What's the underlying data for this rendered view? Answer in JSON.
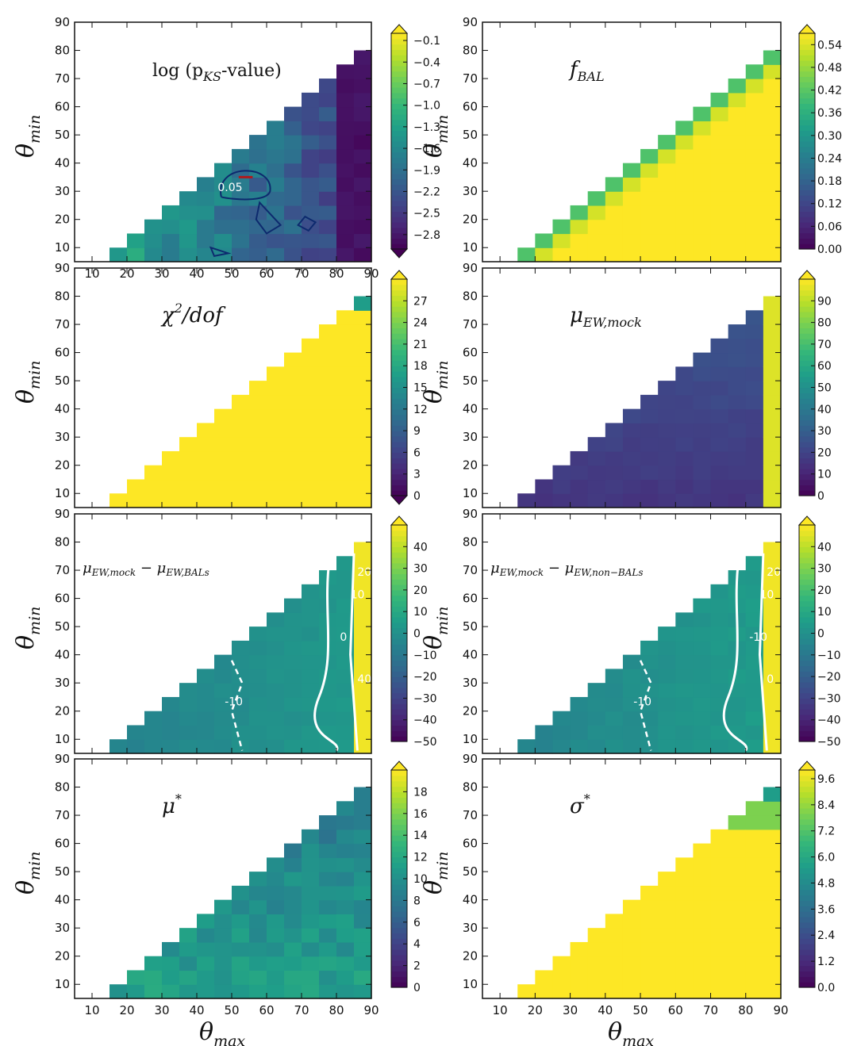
{
  "colors": {
    "viridis": [
      "#440154",
      "#482878",
      "#3e4989",
      "#31688e",
      "#26828e",
      "#1f9e89",
      "#35b779",
      "#6ece58",
      "#b5de2b",
      "#fde725"
    ],
    "axis": "#111111",
    "contour_dark": "#0d2a6e",
    "contour_red": "#b0191c",
    "contour_white": "#ffffff"
  },
  "chart_data": [
    {
      "id": "log_pks",
      "type": "heatmap",
      "title": "log (p_KS-value)",
      "title_main": "log",
      "title_p": "(p",
      "title_sub": "KS",
      "title_rest": "-value)",
      "xlabel": "",
      "ylabel": "θ_min",
      "ylabel_main": "θ",
      "ylabel_sub": "min",
      "xlim": [
        5,
        90
      ],
      "ylim": [
        5,
        90
      ],
      "xticks": [
        "10",
        "20",
        "30",
        "40",
        "50",
        "60",
        "70",
        "80",
        "90"
      ],
      "yticks": [
        "10",
        "20",
        "30",
        "40",
        "50",
        "60",
        "70",
        "80",
        "90"
      ],
      "colorbar": {
        "vmin": -3.0,
        "vmax": 0.0,
        "extend": "both",
        "ticks": [
          "-0.1",
          "-0.4",
          "-0.7",
          "-1.0",
          "-1.3",
          "-1.6",
          "-1.9",
          "-2.2",
          "-2.5",
          "-2.8"
        ],
        "tick_values": [
          -0.1,
          -0.4,
          -0.7,
          -1.0,
          -1.3,
          -1.6,
          -1.9,
          -2.2,
          -2.5,
          -2.8
        ]
      },
      "contour_labels": [
        "0.05"
      ],
      "grid": false
    },
    {
      "id": "f_bal",
      "type": "heatmap",
      "title": "f_BAL",
      "title_main": "f",
      "title_sub": "BAL",
      "xlabel": "",
      "ylabel": "θ_min",
      "ylabel_main": "θ",
      "ylabel_sub": "min",
      "xlim": [
        5,
        90
      ],
      "ylim": [
        5,
        90
      ],
      "xticks": [],
      "yticks": [
        "10",
        "20",
        "30",
        "40",
        "50",
        "60",
        "70",
        "80",
        "90"
      ],
      "colorbar": {
        "vmin": 0.0,
        "vmax": 0.57,
        "extend": "max",
        "ticks": [
          "0.54",
          "0.48",
          "0.42",
          "0.36",
          "0.30",
          "0.24",
          "0.18",
          "0.12",
          "0.06",
          "0.00"
        ],
        "tick_values": [
          0.54,
          0.48,
          0.42,
          0.36,
          0.3,
          0.24,
          0.18,
          0.12,
          0.06,
          0.0
        ]
      },
      "grid": false
    },
    {
      "id": "chi2",
      "type": "heatmap",
      "title": "χ²/dof",
      "title_main": "χ",
      "title_sup": "2",
      "title_rest": "/dof",
      "xlabel": "",
      "ylabel": "θ_min",
      "ylabel_main": "θ",
      "ylabel_sub": "min",
      "xlim": [
        5,
        90
      ],
      "ylim": [
        5,
        90
      ],
      "xticks": [],
      "yticks": [
        "10",
        "20",
        "30",
        "40",
        "50",
        "60",
        "70",
        "80",
        "90"
      ],
      "colorbar": {
        "vmin": 0,
        "vmax": 30,
        "extend": "both",
        "ticks": [
          "27",
          "24",
          "21",
          "18",
          "15",
          "12",
          "9",
          "6",
          "3",
          "0"
        ],
        "tick_values": [
          27,
          24,
          21,
          18,
          15,
          12,
          9,
          6,
          3,
          0
        ]
      },
      "grid": false
    },
    {
      "id": "mu_ew_mock",
      "type": "heatmap",
      "title": "μ_EW,mock",
      "title_main": "μ",
      "title_sub": "EW,mock",
      "xlabel": "",
      "ylabel": "θ_min",
      "ylabel_main": "θ",
      "ylabel_sub": "min",
      "xlim": [
        5,
        90
      ],
      "ylim": [
        5,
        90
      ],
      "xticks": [],
      "yticks": [
        "10",
        "20",
        "30",
        "40",
        "50",
        "60",
        "70",
        "80",
        "90"
      ],
      "colorbar": {
        "vmin": 0,
        "vmax": 100,
        "extend": "max",
        "ticks": [
          "90",
          "80",
          "70",
          "60",
          "50",
          "40",
          "30",
          "20",
          "10",
          "0"
        ],
        "tick_values": [
          90,
          80,
          70,
          60,
          50,
          40,
          30,
          20,
          10,
          0
        ]
      },
      "grid": false
    },
    {
      "id": "diff_bals",
      "type": "heatmap",
      "title": "μ_EW,mock − μ_EW,BALs",
      "title_m1": "μ",
      "title_s1": "EW,mock",
      "title_op": " − ",
      "title_m2": "μ",
      "title_s2": "EW,BALs",
      "xlabel": "",
      "ylabel": "θ_min",
      "ylabel_main": "θ",
      "ylabel_sub": "min",
      "xlim": [
        5,
        90
      ],
      "ylim": [
        5,
        90
      ],
      "xticks": [],
      "yticks": [
        "10",
        "20",
        "30",
        "40",
        "50",
        "60",
        "70",
        "80",
        "90"
      ],
      "colorbar": {
        "vmin": -50,
        "vmax": 50,
        "extend": "max",
        "ticks": [
          "40",
          "30",
          "20",
          "10",
          "0",
          "-10",
          "-20",
          "-30",
          "-40",
          "-50"
        ],
        "tick_values": [
          40,
          30,
          20,
          10,
          0,
          -10,
          -20,
          -30,
          -40,
          -50
        ]
      },
      "contour_labels": [
        "-10",
        "0",
        "10",
        "20",
        "40"
      ],
      "grid": false
    },
    {
      "id": "diff_nonbals",
      "type": "heatmap",
      "title": "μ_EW,mock − μ_EW,non−BALs",
      "title_m1": "μ",
      "title_s1": "EW,mock",
      "title_op": " − ",
      "title_m2": "μ",
      "title_s2": "EW,non−BALs",
      "xlabel": "",
      "ylabel": "θ_min",
      "ylabel_main": "θ",
      "ylabel_sub": "min",
      "xlim": [
        5,
        90
      ],
      "ylim": [
        5,
        90
      ],
      "xticks": [],
      "yticks": [
        "10",
        "20",
        "30",
        "40",
        "50",
        "60",
        "70",
        "80",
        "90"
      ],
      "colorbar": {
        "vmin": -50,
        "vmax": 50,
        "extend": "max",
        "ticks": [
          "40",
          "30",
          "20",
          "10",
          "0",
          "-10",
          "-20",
          "-30",
          "-40",
          "-50"
        ],
        "tick_values": [
          40,
          30,
          20,
          10,
          0,
          -10,
          -20,
          -30,
          -40,
          -50
        ]
      },
      "contour_labels": [
        "-10",
        "-10",
        "10",
        "20",
        "0"
      ],
      "grid": false
    },
    {
      "id": "mu_star",
      "type": "heatmap",
      "title": "μ*",
      "title_main": "μ",
      "title_sup": "*",
      "xlabel": "θ_max",
      "xlabel_main": "θ",
      "xlabel_sub": "max",
      "ylabel": "θ_min",
      "ylabel_main": "θ",
      "ylabel_sub": "min",
      "xlim": [
        5,
        90
      ],
      "ylim": [
        5,
        90
      ],
      "xticks": [
        "10",
        "20",
        "30",
        "40",
        "50",
        "60",
        "70",
        "80",
        "90"
      ],
      "yticks": [
        "10",
        "20",
        "30",
        "40",
        "50",
        "60",
        "70",
        "80",
        "90"
      ],
      "colorbar": {
        "vmin": 0,
        "vmax": 20,
        "extend": "max",
        "ticks": [
          "18",
          "16",
          "14",
          "12",
          "10",
          "8",
          "6",
          "4",
          "2",
          "0"
        ],
        "tick_values": [
          18,
          16,
          14,
          12,
          10,
          8,
          6,
          4,
          2,
          0
        ]
      },
      "grid": false
    },
    {
      "id": "sigma_star",
      "type": "heatmap",
      "title": "σ*",
      "title_main": "σ",
      "title_sup": "*",
      "xlabel": "θ_max",
      "xlabel_main": "θ",
      "xlabel_sub": "max",
      "ylabel": "θ_min",
      "ylabel_main": "θ",
      "ylabel_sub": "min",
      "xlim": [
        5,
        90
      ],
      "ylim": [
        5,
        90
      ],
      "xticks": [
        "10",
        "20",
        "30",
        "40",
        "50",
        "60",
        "70",
        "80",
        "90"
      ],
      "yticks": [
        "10",
        "20",
        "30",
        "40",
        "50",
        "60",
        "70",
        "80",
        "90"
      ],
      "colorbar": {
        "vmin": 0,
        "vmax": 10,
        "extend": "max",
        "ticks": [
          "9.6",
          "8.4",
          "7.2",
          "6.0",
          "4.8",
          "3.6",
          "2.4",
          "1.2",
          "0.0"
        ],
        "tick_values": [
          9.6,
          8.4,
          7.2,
          6.0,
          4.8,
          3.6,
          2.4,
          1.2,
          0.0
        ]
      },
      "grid": false
    }
  ]
}
